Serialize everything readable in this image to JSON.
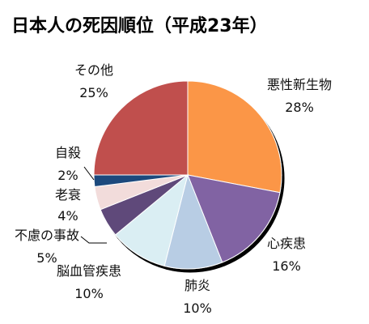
{
  "chart_data": {
    "type": "pie",
    "title": "日本人の死因順位（平成23年）",
    "slices": [
      {
        "name": "悪性新生物",
        "value": 28,
        "pct_label": "28%",
        "color": "#FB9646"
      },
      {
        "name": "心疾患",
        "value": 16,
        "pct_label": "16%",
        "color": "#8164A3"
      },
      {
        "name": "肺炎",
        "value": 10,
        "pct_label": "10%",
        "color": "#B8CDE4"
      },
      {
        "name": "脳血管疾患",
        "value": 10,
        "pct_label": "10%",
        "color": "#DAEEF3"
      },
      {
        "name": "不慮の事故",
        "value": 5,
        "pct_label": "5%",
        "color": "#5F4A7A"
      },
      {
        "name": "老衰",
        "value": 4,
        "pct_label": "4%",
        "color": "#F2DCDB"
      },
      {
        "name": "自殺",
        "value": 2,
        "pct_label": "2%",
        "color": "#1F497D"
      },
      {
        "name": "その他",
        "value": 25,
        "pct_label": "25%",
        "color": "#C0504D"
      }
    ]
  }
}
